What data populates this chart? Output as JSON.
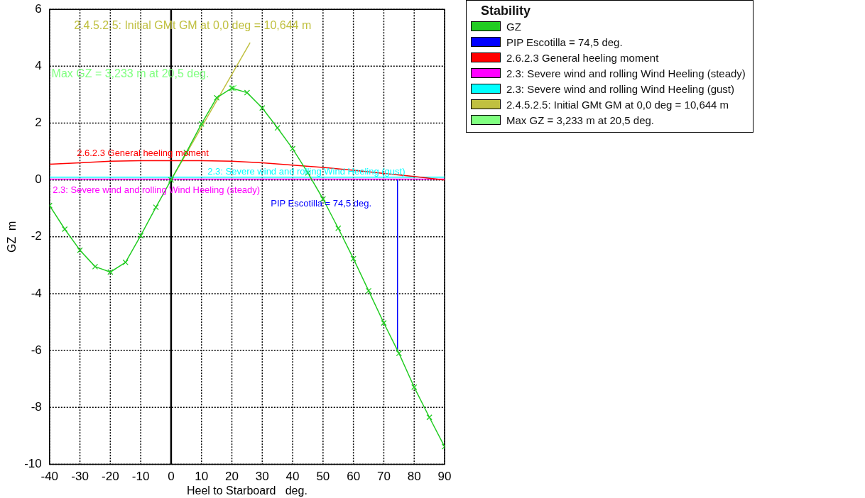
{
  "chart_data": {
    "type": "line",
    "xlabel": "Heel to Starboard   deg.",
    "ylabel": "GZ  m",
    "legend_title": "Stability",
    "legend": "right",
    "grid": true,
    "line_style": "solid",
    "marker": "none",
    "xlim": [
      -40,
      90
    ],
    "xticks": [
      -40,
      -30,
      -20,
      -10,
      0,
      10,
      20,
      30,
      40,
      50,
      60,
      70,
      80,
      90
    ],
    "ylim": [
      -10,
      6
    ],
    "yticks": [
      -10,
      -8,
      -6,
      -4,
      -2,
      0,
      2,
      4,
      6
    ],
    "series": [
      {
        "name": "GZ",
        "color": "#22cc22",
        "marker": "cross",
        "x": [
          -40,
          -35,
          -30,
          -25,
          -20,
          -15,
          -10,
          -5,
          0,
          5,
          10,
          15,
          20,
          25,
          30,
          35,
          40,
          45,
          50,
          55,
          60,
          65,
          70,
          75,
          80,
          85,
          90
        ],
        "values": [
          -0.9,
          -1.73,
          -2.47,
          -3.05,
          -3.24,
          -2.9,
          -1.96,
          -0.96,
          0,
          0.97,
          1.97,
          2.89,
          3.23,
          3.07,
          2.53,
          1.83,
          1.1,
          0.25,
          -0.67,
          -1.7,
          -2.77,
          -3.9,
          -5.03,
          -6.1,
          -7.29,
          -8.35,
          -9.38
        ]
      },
      {
        "name": "PIP Escotilla = 74,5 deg.",
        "color": "#0000ff",
        "x": [
          74.5,
          74.5
        ],
        "values": [
          0,
          -6
        ]
      },
      {
        "name": "2.6.2.3 General heeling moment",
        "color": "#ff0000",
        "x": [
          -40,
          -30,
          -20,
          -10,
          0,
          10,
          20,
          30,
          40,
          50,
          60,
          70,
          80,
          90
        ],
        "values": [
          0.55,
          0.6,
          0.66,
          0.68,
          0.68,
          0.68,
          0.66,
          0.6,
          0.52,
          0.44,
          0.34,
          0.23,
          0.12,
          0
        ]
      },
      {
        "name": "2.3: Severe wind and rolling Wind Heeling (steady)",
        "color": "#ff00ff",
        "x": [
          -40,
          90
        ],
        "values": [
          0.03,
          0.03
        ]
      },
      {
        "name": "2.3: Severe wind and rolling Wind Heeling (gust)",
        "color": "#00ffff",
        "x": [
          -40,
          90
        ],
        "values": [
          0.1,
          0.1
        ]
      },
      {
        "name": "2.4.5.2.5: Initial GMt GM at 0,0 deg = 10,644 m",
        "color": "#c0c040",
        "x": [
          0,
          26
        ],
        "values": [
          0,
          4.83
        ]
      },
      {
        "name": "Max GZ = 3,233 m at 20,5 deg.",
        "color": "#80ff80",
        "type": "scatter",
        "marker": "cross",
        "x": [
          20.5
        ],
        "values": [
          3.23
        ]
      }
    ],
    "ref_lines": [
      {
        "axis": "x",
        "value": 0,
        "color": "#000000"
      }
    ],
    "annotations": [
      "2.4.5.2.5: Initial GMt GM at 0,0 deg = 10,644 m",
      "Max GZ = 3,233 m at 20,5 deg.",
      "2.6.2.3 General heeling moment",
      "2.3: Severe wind and rolling Wind Heeling (steady)",
      "2.3: Severe wind and rolling Wind Heeling (gust)",
      "PIP Escotilla = 74,5 deg."
    ]
  }
}
